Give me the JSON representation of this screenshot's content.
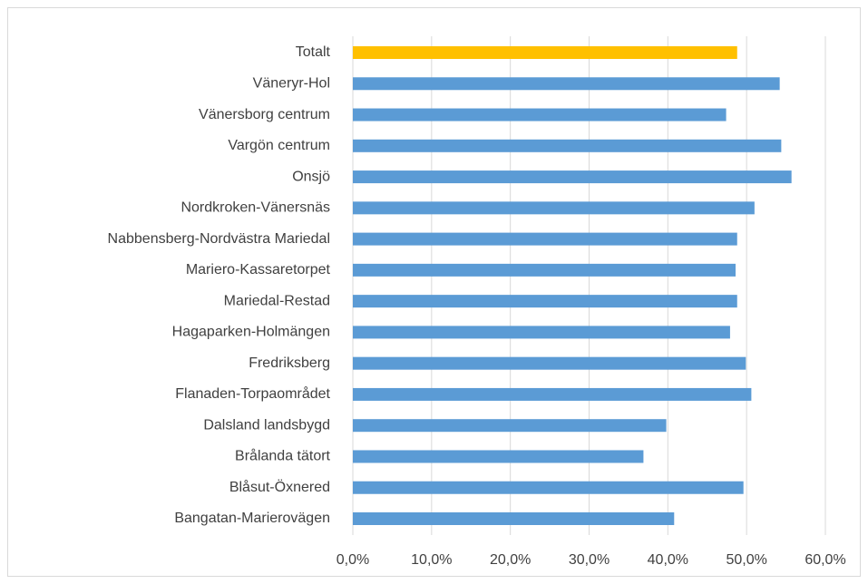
{
  "chart_data": {
    "type": "bar",
    "orientation": "horizontal",
    "categories": [
      "Totalt",
      "Väneryr-Hol",
      "Vänersborg centrum",
      "Vargön centrum",
      "Onsjö",
      "Nordkroken-Vänersnäs",
      "Nabbensberg-Nordvästra Mariedal",
      "Mariero-Kassaretorpet",
      "Mariedal-Restad",
      "Hagaparken-Holmängen",
      "Fredriksberg",
      "Flanaden-Torpaområdet",
      "Dalsland landsbygd",
      "Brålanda tätort",
      "Blåsut-Öxnered",
      "Bangatan-Marierovägen"
    ],
    "values": [
      48.8,
      54.2,
      47.4,
      54.4,
      55.7,
      51.0,
      48.8,
      48.6,
      48.8,
      47.9,
      49.9,
      50.6,
      39.8,
      36.9,
      49.6,
      40.8
    ],
    "colors": [
      "#ffc000",
      "#5b9bd5",
      "#5b9bd5",
      "#5b9bd5",
      "#5b9bd5",
      "#5b9bd5",
      "#5b9bd5",
      "#5b9bd5",
      "#5b9bd5",
      "#5b9bd5",
      "#5b9bd5",
      "#5b9bd5",
      "#5b9bd5",
      "#5b9bd5",
      "#5b9bd5",
      "#5b9bd5"
    ],
    "xlim": [
      0,
      60
    ],
    "xticks": [
      {
        "value": 0,
        "label": "0,0%"
      },
      {
        "value": 10,
        "label": "10,0%"
      },
      {
        "value": 20,
        "label": "20,0%"
      },
      {
        "value": 30,
        "label": "30,0%"
      },
      {
        "value": 40,
        "label": "40,0%"
      },
      {
        "value": 50,
        "label": "50,0%"
      },
      {
        "value": 60,
        "label": "60,0%"
      }
    ],
    "grid": true
  }
}
